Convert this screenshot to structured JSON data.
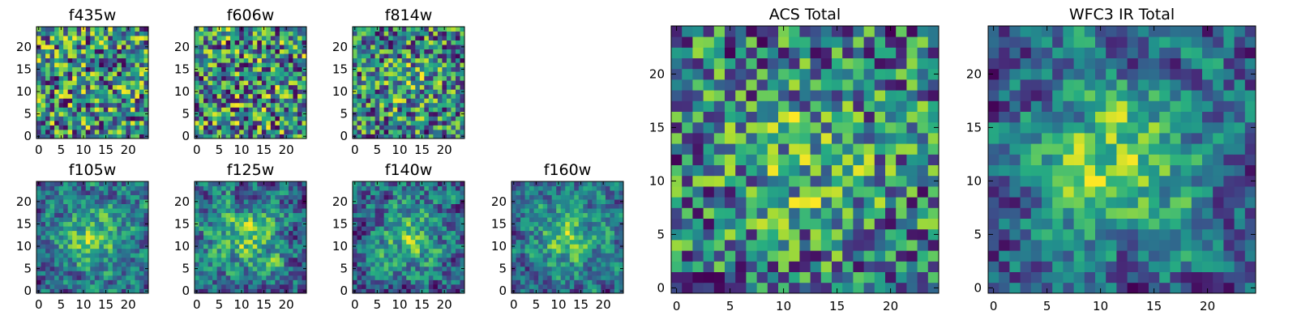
{
  "figure": {
    "colormap": "viridis",
    "background": "#ffffff"
  },
  "chart_data": [
    {
      "type": "heatmap",
      "title": "f435w",
      "grid_size": [
        25,
        25
      ],
      "xlim": [
        0,
        24
      ],
      "ylim": [
        0,
        24
      ],
      "xticks": [
        "0",
        "5",
        "10",
        "15",
        "20"
      ],
      "yticks": [
        "0",
        "5",
        "10",
        "15",
        "20"
      ],
      "seed": 11,
      "center_boost": 0.0,
      "smooth": 0,
      "grid": false,
      "legend": null
    },
    {
      "type": "heatmap",
      "title": "f606w",
      "grid_size": [
        25,
        25
      ],
      "xlim": [
        0,
        24
      ],
      "ylim": [
        0,
        24
      ],
      "xticks": [
        "0",
        "5",
        "10",
        "15",
        "20"
      ],
      "yticks": [
        "0",
        "5",
        "10",
        "15",
        "20"
      ],
      "seed": 23,
      "center_boost": 0.0,
      "smooth": 0,
      "grid": false,
      "legend": null
    },
    {
      "type": "heatmap",
      "title": "f814w",
      "grid_size": [
        25,
        25
      ],
      "xlim": [
        0,
        24
      ],
      "ylim": [
        0,
        24
      ],
      "xticks": [
        "0",
        "5",
        "10",
        "15",
        "20"
      ],
      "yticks": [
        "0",
        "5",
        "10",
        "15",
        "20"
      ],
      "seed": 37,
      "center_boost": 0.15,
      "smooth": 0,
      "grid": false,
      "legend": null
    },
    {
      "type": "heatmap",
      "title": "f105w",
      "grid_size": [
        25,
        25
      ],
      "xlim": [
        0,
        24
      ],
      "ylim": [
        0,
        24
      ],
      "xticks": [
        "0",
        "5",
        "10",
        "15",
        "20"
      ],
      "yticks": [
        "0",
        "5",
        "10",
        "15",
        "20"
      ],
      "seed": 41,
      "center_boost": 0.45,
      "smooth": 1,
      "grid": false,
      "legend": null
    },
    {
      "type": "heatmap",
      "title": "f125w",
      "grid_size": [
        25,
        25
      ],
      "xlim": [
        0,
        24
      ],
      "ylim": [
        0,
        24
      ],
      "xticks": [
        "0",
        "5",
        "10",
        "15",
        "20"
      ],
      "yticks": [
        "0",
        "5",
        "10",
        "15",
        "20"
      ],
      "seed": 53,
      "center_boost": 0.35,
      "smooth": 1,
      "grid": false,
      "legend": null
    },
    {
      "type": "heatmap",
      "title": "f140w",
      "grid_size": [
        25,
        25
      ],
      "xlim": [
        0,
        24
      ],
      "ylim": [
        0,
        24
      ],
      "xticks": [
        "0",
        "5",
        "10",
        "15",
        "20"
      ],
      "yticks": [
        "0",
        "5",
        "10",
        "15",
        "20"
      ],
      "seed": 67,
      "center_boost": 0.35,
      "smooth": 1,
      "grid": false,
      "legend": null
    },
    {
      "type": "heatmap",
      "title": "f160w",
      "grid_size": [
        25,
        25
      ],
      "xlim": [
        0,
        24
      ],
      "ylim": [
        0,
        24
      ],
      "xticks": [
        "0",
        "5",
        "10",
        "15",
        "20"
      ],
      "yticks": [
        "0",
        "5",
        "10",
        "15",
        "20"
      ],
      "seed": 79,
      "center_boost": 0.45,
      "smooth": 1,
      "grid": false,
      "legend": null
    },
    {
      "type": "heatmap",
      "title": "ACS Total",
      "grid_size": [
        25,
        25
      ],
      "xlim": [
        0,
        24
      ],
      "ylim": [
        0,
        24
      ],
      "xticks": [
        "0",
        "5",
        "10",
        "15",
        "20"
      ],
      "yticks": [
        "0",
        "5",
        "10",
        "15",
        "20"
      ],
      "seed": 97,
      "center_boost": 0.25,
      "smooth": 0,
      "grid": false,
      "legend": null
    },
    {
      "type": "heatmap",
      "title": "WFC3 IR Total",
      "grid_size": [
        25,
        25
      ],
      "xlim": [
        0,
        24
      ],
      "ylim": [
        0,
        24
      ],
      "xticks": [
        "0",
        "5",
        "10",
        "15",
        "20"
      ],
      "yticks": [
        "0",
        "5",
        "10",
        "15",
        "20"
      ],
      "seed": 101,
      "center_boost": 0.55,
      "smooth": 1,
      "grid": false,
      "legend": null
    }
  ]
}
